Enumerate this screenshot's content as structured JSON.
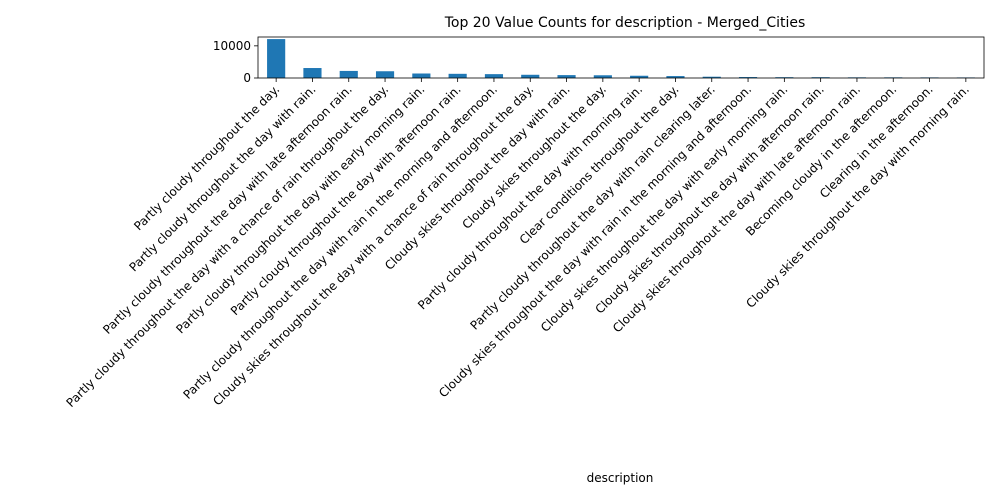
{
  "chart_data": {
    "type": "bar",
    "title": "Top 20 Value Counts for description - Merged_Cities",
    "xlabel": "description",
    "ylabel": "",
    "ylim": [
      0,
      12750
    ],
    "yticks": [
      0,
      10000
    ],
    "grid": false,
    "legend": "none",
    "bar_color": "#1f77b4",
    "categories": [
      "Partly cloudy throughout the day.",
      "Partly cloudy throughout the day with rain.",
      "Partly cloudy throughout the day with late afternoon rain.",
      "Partly cloudy throughout the day with a chance of rain throughout the day.",
      "Partly cloudy throughout the day with early morning rain.",
      "Partly cloudy throughout the day with afternoon rain.",
      "Partly cloudy throughout the day with rain in the morning and afternoon.",
      "Cloudy skies throughout the day with a chance of rain throughout the day.",
      "Cloudy skies throughout the day with rain.",
      "Cloudy skies throughout the day.",
      "Partly cloudy throughout the day with morning rain.",
      "Clear conditions throughout the day.",
      "Partly cloudy throughout the day with rain clearing later.",
      "Cloudy skies throughout the day with rain in the morning and afternoon.",
      "Cloudy skies throughout the day with early morning rain.",
      "Cloudy skies throughout the day with afternoon rain.",
      "Cloudy skies throughout the day with late afternoon rain.",
      "Becoming cloudy in the afternoon.",
      "Clearing in the afternoon.",
      "Cloudy skies throughout the day with morning rain."
    ],
    "values": [
      12100,
      3100,
      2200,
      2100,
      1400,
      1300,
      1200,
      1000,
      900,
      850,
      700,
      600,
      400,
      300,
      250,
      250,
      200,
      200,
      180,
      170
    ]
  }
}
